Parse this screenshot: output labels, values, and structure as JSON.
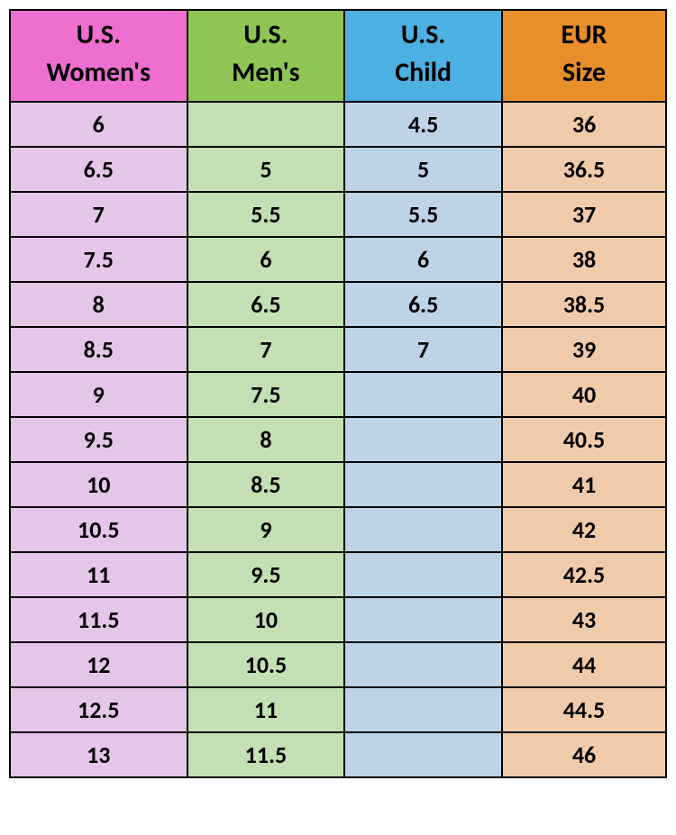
{
  "table": {
    "type": "table",
    "columns": [
      {
        "line1": "U.S.",
        "line2": "Women's",
        "header_bg": "#ee6fcf",
        "body_bg": "#e4c7e8",
        "width_pct": 27
      },
      {
        "line1": "U.S.",
        "line2": "Men's",
        "header_bg": "#8fc554",
        "body_bg": "#c4dfb3",
        "width_pct": 24
      },
      {
        "line1": "U.S.",
        "line2": "Child",
        "header_bg": "#4db0e3",
        "body_bg": "#bed3e5",
        "width_pct": 24
      },
      {
        "line1": "EUR",
        "line2": "Size",
        "header_bg": "#e88f2c",
        "body_bg": "#f0cbab",
        "width_pct": 25
      }
    ],
    "rows": [
      [
        "6",
        "",
        "4.5",
        "36"
      ],
      [
        "6.5",
        "5",
        "5",
        "36.5"
      ],
      [
        "7",
        "5.5",
        "5.5",
        "37"
      ],
      [
        "7.5",
        "6",
        "6",
        "38"
      ],
      [
        "8",
        "6.5",
        "6.5",
        "38.5"
      ],
      [
        "8.5",
        "7",
        "7",
        "39"
      ],
      [
        "9",
        "7.5",
        "",
        "40"
      ],
      [
        "9.5",
        "8",
        "",
        "40.5"
      ],
      [
        "10",
        "8.5",
        "",
        "41"
      ],
      [
        "10.5",
        "9",
        "",
        "42"
      ],
      [
        "11",
        "9.5",
        "",
        "42.5"
      ],
      [
        "11.5",
        "10",
        "",
        "43"
      ],
      [
        "12",
        "10.5",
        "",
        "44"
      ],
      [
        "12.5",
        "11",
        "",
        "44.5"
      ],
      [
        "13",
        "11.5",
        "",
        "46"
      ]
    ],
    "border_color": "#000000",
    "header_fontsize": 30,
    "cell_fontsize": 26,
    "font_weight": 700,
    "font_family": "Calibri, Arial, sans-serif"
  }
}
